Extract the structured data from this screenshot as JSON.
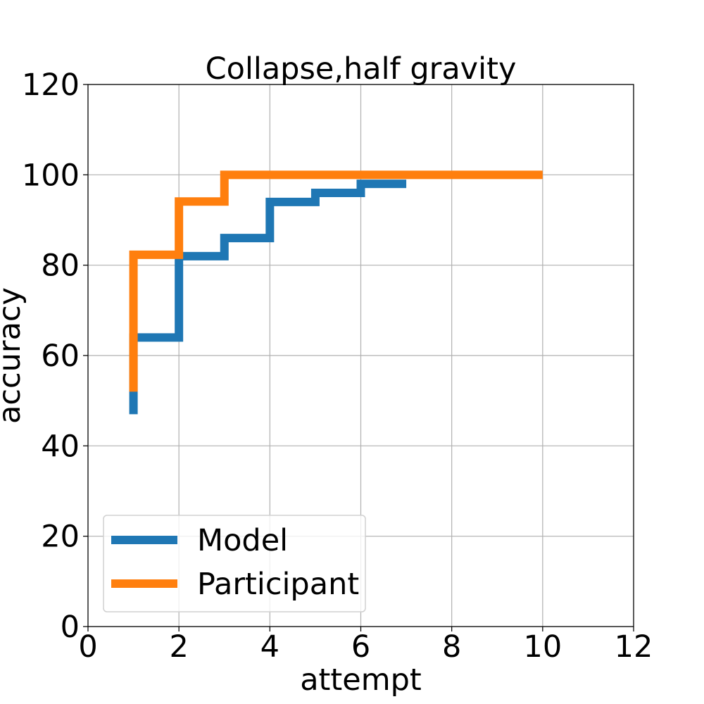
{
  "chart_data": {
    "type": "line",
    "step": "post",
    "title": "Collapse,half gravity",
    "xlabel": "attempt",
    "ylabel": "accuracy",
    "xlim": [
      0,
      12
    ],
    "ylim": [
      0,
      120
    ],
    "xticks": [
      0,
      2,
      4,
      6,
      8,
      10,
      12
    ],
    "yticks": [
      0,
      20,
      40,
      60,
      80,
      100,
      120
    ],
    "grid": true,
    "legend_position": "lower-left",
    "series": [
      {
        "name": "Model",
        "color": "#1f77b4",
        "x": [
          1,
          1,
          2,
          2,
          3,
          3,
          4,
          4,
          5,
          5,
          6,
          6,
          7
        ],
        "y": [
          47,
          64,
          64,
          82,
          82,
          86,
          86,
          94,
          94,
          96,
          96,
          98,
          98
        ]
      },
      {
        "name": "Participant",
        "color": "#ff7f0e",
        "x": [
          1,
          1,
          2,
          2,
          3,
          3,
          10
        ],
        "y": [
          52,
          82.3,
          82.3,
          94.1,
          94.1,
          100,
          100
        ]
      }
    ]
  }
}
